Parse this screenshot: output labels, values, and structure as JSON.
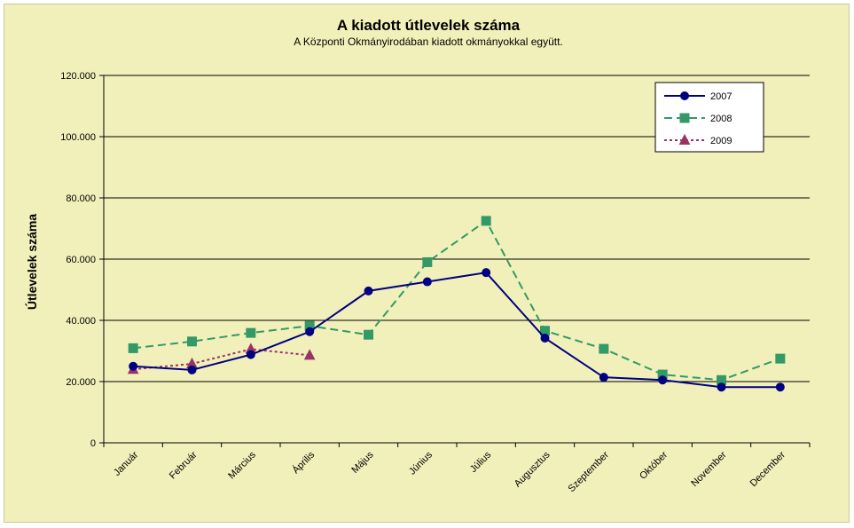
{
  "chart_data": {
    "type": "line",
    "title": "A  kiadott útlevelek száma",
    "subtitle": "A Központi Okmányirodában kiadott okmányokkal együtt.",
    "xlabel": "",
    "ylabel": "Útlevelek száma",
    "categories": [
      "Január",
      "Február",
      "Március",
      "Április",
      "Május",
      "Június",
      "Július",
      "Augusztus",
      "Szeptember",
      "Október",
      "November",
      "December"
    ],
    "ylim": [
      0,
      120000
    ],
    "yticks": [
      0,
      20000,
      40000,
      60000,
      80000,
      100000,
      120000
    ],
    "ytick_labels": [
      "0",
      "20.000",
      "40.000",
      "60.000",
      "80.000",
      "100.000",
      "120.000"
    ],
    "grid": true,
    "legend_position": "top-right",
    "series": [
      {
        "name": "2007",
        "color": "#000080",
        "marker": "circle",
        "dash": "solid",
        "values": [
          25000,
          23800,
          28800,
          36300,
          49600,
          52600,
          55600,
          34200,
          21400,
          20500,
          18200,
          18200
        ]
      },
      {
        "name": "2008",
        "color": "#339966",
        "marker": "square",
        "dash": "dashed",
        "values": [
          30900,
          33100,
          35900,
          38200,
          35300,
          59000,
          72500,
          36600,
          30700,
          22300,
          20500,
          27500
        ]
      },
      {
        "name": "2009",
        "color": "#993366",
        "marker": "triangle",
        "dash": "dotted",
        "values": [
          24000,
          25800,
          30600,
          28600,
          null,
          null,
          null,
          null,
          null,
          null,
          null,
          null
        ]
      }
    ]
  }
}
